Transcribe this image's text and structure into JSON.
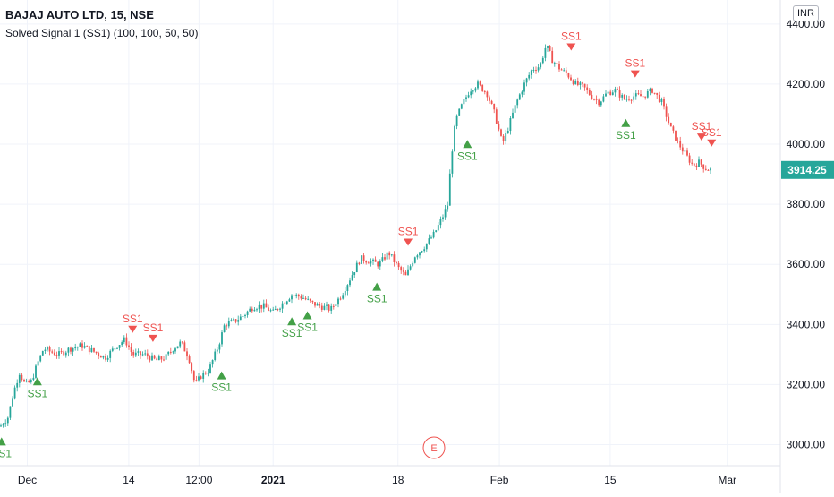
{
  "legend": {
    "symbol_line": "BAJAJ AUTO LTD, 15, NSE",
    "indicator_line": "Solved Signal 1 (SS1) (100, 100, 50, 50)"
  },
  "currency": "INR",
  "event_marker": "E",
  "colors": {
    "up": "#26a69a",
    "down": "#ef5350",
    "buy_signal": "#43a047",
    "sell_signal": "#ef5350",
    "price_badge": "#26a69a",
    "grid": "#f0f3fa"
  },
  "chart_data": {
    "type": "candlestick",
    "title": "BAJAJ AUTO LTD, 15, NSE",
    "ylim": [
      2930,
      4480
    ],
    "y_ticks": [
      3000,
      3200,
      3400,
      3600,
      3800,
      4000,
      4200,
      4400
    ],
    "y_tick_labels": [
      "3000.00",
      "3200.00",
      "3400.00",
      "3600.00",
      "3800.00",
      "4000.00",
      "4200.00",
      "4400.00"
    ],
    "x_ticks": [
      {
        "label": "Dec",
        "t": 0.035
      },
      {
        "label": "14",
        "t": 0.165
      },
      {
        "label": "12:00",
        "t": 0.255
      },
      {
        "label": "2021",
        "t": 0.35
      },
      {
        "label": "18",
        "t": 0.51
      },
      {
        "label": "Feb",
        "t": 0.64
      },
      {
        "label": "15",
        "t": 0.782
      },
      {
        "label": "Mar",
        "t": 0.932
      }
    ],
    "last_price": 3914.25,
    "last_price_label": "3914.25",
    "price_path": [
      [
        0.0,
        3060
      ],
      [
        0.01,
        3090
      ],
      [
        0.018,
        3180
      ],
      [
        0.025,
        3240
      ],
      [
        0.032,
        3200
      ],
      [
        0.04,
        3210
      ],
      [
        0.048,
        3270
      ],
      [
        0.056,
        3320
      ],
      [
        0.064,
        3310
      ],
      [
        0.075,
        3300
      ],
      [
        0.09,
        3320
      ],
      [
        0.105,
        3330
      ],
      [
        0.12,
        3310
      ],
      [
        0.135,
        3290
      ],
      [
        0.15,
        3330
      ],
      [
        0.16,
        3350
      ],
      [
        0.17,
        3300
      ],
      [
        0.185,
        3300
      ],
      [
        0.2,
        3280
      ],
      [
        0.212,
        3290
      ],
      [
        0.222,
        3320
      ],
      [
        0.232,
        3340
      ],
      [
        0.242,
        3290
      ],
      [
        0.25,
        3200
      ],
      [
        0.258,
        3230
      ],
      [
        0.268,
        3250
      ],
      [
        0.28,
        3330
      ],
      [
        0.288,
        3400
      ],
      [
        0.3,
        3410
      ],
      [
        0.312,
        3430
      ],
      [
        0.325,
        3460
      ],
      [
        0.338,
        3460
      ],
      [
        0.35,
        3440
      ],
      [
        0.362,
        3470
      ],
      [
        0.374,
        3500
      ],
      [
        0.388,
        3490
      ],
      [
        0.4,
        3470
      ],
      [
        0.412,
        3460
      ],
      [
        0.424,
        3450
      ],
      [
        0.438,
        3500
      ],
      [
        0.45,
        3560
      ],
      [
        0.462,
        3620
      ],
      [
        0.474,
        3610
      ],
      [
        0.486,
        3600
      ],
      [
        0.498,
        3640
      ],
      [
        0.51,
        3590
      ],
      [
        0.52,
        3560
      ],
      [
        0.532,
        3630
      ],
      [
        0.544,
        3660
      ],
      [
        0.556,
        3700
      ],
      [
        0.566,
        3750
      ],
      [
        0.574,
        3800
      ],
      [
        0.578,
        3950
      ],
      [
        0.584,
        4080
      ],
      [
        0.592,
        4130
      ],
      [
        0.602,
        4180
      ],
      [
        0.612,
        4200
      ],
      [
        0.624,
        4170
      ],
      [
        0.634,
        4100
      ],
      [
        0.644,
        4000
      ],
      [
        0.652,
        4060
      ],
      [
        0.662,
        4140
      ],
      [
        0.672,
        4200
      ],
      [
        0.682,
        4250
      ],
      [
        0.692,
        4260
      ],
      [
        0.7,
        4330
      ],
      [
        0.708,
        4280
      ],
      [
        0.718,
        4250
      ],
      [
        0.728,
        4230
      ],
      [
        0.738,
        4200
      ],
      [
        0.748,
        4190
      ],
      [
        0.758,
        4160
      ],
      [
        0.768,
        4140
      ],
      [
        0.778,
        4170
      ],
      [
        0.788,
        4180
      ],
      [
        0.8,
        4150
      ],
      [
        0.812,
        4160
      ],
      [
        0.824,
        4160
      ],
      [
        0.836,
        4180
      ],
      [
        0.848,
        4140
      ],
      [
        0.86,
        4050
      ],
      [
        0.87,
        4000
      ],
      [
        0.88,
        3960
      ],
      [
        0.888,
        3930
      ],
      [
        0.896,
        3940
      ],
      [
        0.904,
        3920
      ],
      [
        0.912,
        3914
      ]
    ],
    "signals": [
      {
        "label": "SS1",
        "side": "buy",
        "t": 0.002,
        "price": 3060
      },
      {
        "label": "SS1",
        "side": "buy",
        "t": 0.048,
        "price": 3260
      },
      {
        "label": "SS1",
        "side": "sell",
        "t": 0.17,
        "price": 3330
      },
      {
        "label": "SS1",
        "side": "sell",
        "t": 0.196,
        "price": 3300
      },
      {
        "label": "SS1",
        "side": "buy",
        "t": 0.284,
        "price": 3280
      },
      {
        "label": "SS1",
        "side": "buy",
        "t": 0.374,
        "price": 3460
      },
      {
        "label": "SS1",
        "side": "buy",
        "t": 0.394,
        "price": 3480
      },
      {
        "label": "SS1",
        "side": "buy",
        "t": 0.483,
        "price": 3575
      },
      {
        "label": "SS1",
        "side": "sell",
        "t": 0.523,
        "price": 3620
      },
      {
        "label": "SS1",
        "side": "buy",
        "t": 0.599,
        "price": 4050
      },
      {
        "label": "SS1",
        "side": "sell",
        "t": 0.732,
        "price": 4270
      },
      {
        "label": "SS1",
        "side": "buy",
        "t": 0.802,
        "price": 4120
      },
      {
        "label": "SS1",
        "side": "sell",
        "t": 0.814,
        "price": 4180
      },
      {
        "label": "SS1",
        "side": "sell",
        "t": 0.899,
        "price": 3970
      },
      {
        "label": "SS1",
        "side": "sell",
        "t": 0.912,
        "price": 3950
      }
    ]
  }
}
